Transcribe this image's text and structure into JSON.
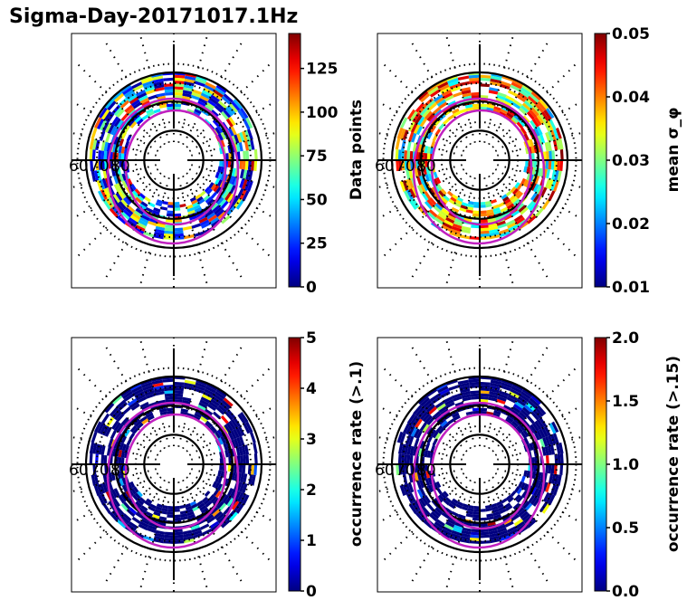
{
  "title": "Sigma-Day-20171017.1Hz",
  "chart_data": [
    {
      "type": "heatmap",
      "projection": "polar (magnetic latitude / MLT)",
      "title": "",
      "colorbar_label": "Data points",
      "colormap": "jet",
      "clim": [
        0,
        145
      ],
      "ticks": [
        0,
        25,
        50,
        75,
        100,
        125
      ],
      "tick_labels": [
        "0",
        "25",
        "50",
        "75",
        "100",
        "125"
      ],
      "lat_labels": [
        "60",
        "70",
        "80"
      ],
      "lat_rings": [
        60,
        70,
        80
      ],
      "typical_value_range": [
        5,
        140
      ],
      "auroral_oval_boundaries": 2,
      "oval_color": "#c020c0"
    },
    {
      "type": "heatmap",
      "projection": "polar (magnetic latitude / MLT)",
      "title": "",
      "colorbar_label": "mean σ_φ",
      "colormap": "jet",
      "clim": [
        0.01,
        0.05
      ],
      "ticks": [
        0.01,
        0.02,
        0.03,
        0.04,
        0.05
      ],
      "tick_labels": [
        "0.01",
        "0.02",
        "0.03",
        "0.04",
        "0.05"
      ],
      "lat_labels": [
        "60",
        "70",
        "80"
      ],
      "lat_rings": [
        60,
        70,
        80
      ],
      "typical_value_range": [
        0.02,
        0.05
      ],
      "auroral_oval_boundaries": 2,
      "oval_color": "#c020c0"
    },
    {
      "type": "heatmap",
      "projection": "polar (magnetic latitude / MLT)",
      "title": "",
      "colorbar_label": "occurrence rate (>.1)",
      "colormap": "jet",
      "clim": [
        0,
        5
      ],
      "ticks": [
        0,
        1,
        2,
        3,
        4,
        5
      ],
      "tick_labels": [
        "0",
        "1",
        "2",
        "3",
        "4",
        "5"
      ],
      "lat_labels": [
        "60",
        "70",
        "80"
      ],
      "lat_rings": [
        60,
        70,
        80
      ],
      "typical_value_range": [
        0,
        5
      ],
      "auroral_oval_boundaries": 2,
      "oval_color": "#c020c0"
    },
    {
      "type": "heatmap",
      "projection": "polar (magnetic latitude / MLT)",
      "title": "",
      "colorbar_label": "occurrence rate (>.15)",
      "colormap": "jet",
      "clim": [
        0.0,
        2.0
      ],
      "ticks": [
        0.0,
        0.5,
        1.0,
        1.5,
        2.0
      ],
      "tick_labels": [
        "0.0",
        "0.5",
        "1.0",
        "1.5",
        "2.0"
      ],
      "lat_labels": [
        "60",
        "70",
        "80"
      ],
      "lat_rings": [
        60,
        70,
        80
      ],
      "typical_value_range": [
        0,
        2
      ],
      "auroral_oval_boundaries": 2,
      "oval_color": "#c020c0"
    }
  ]
}
